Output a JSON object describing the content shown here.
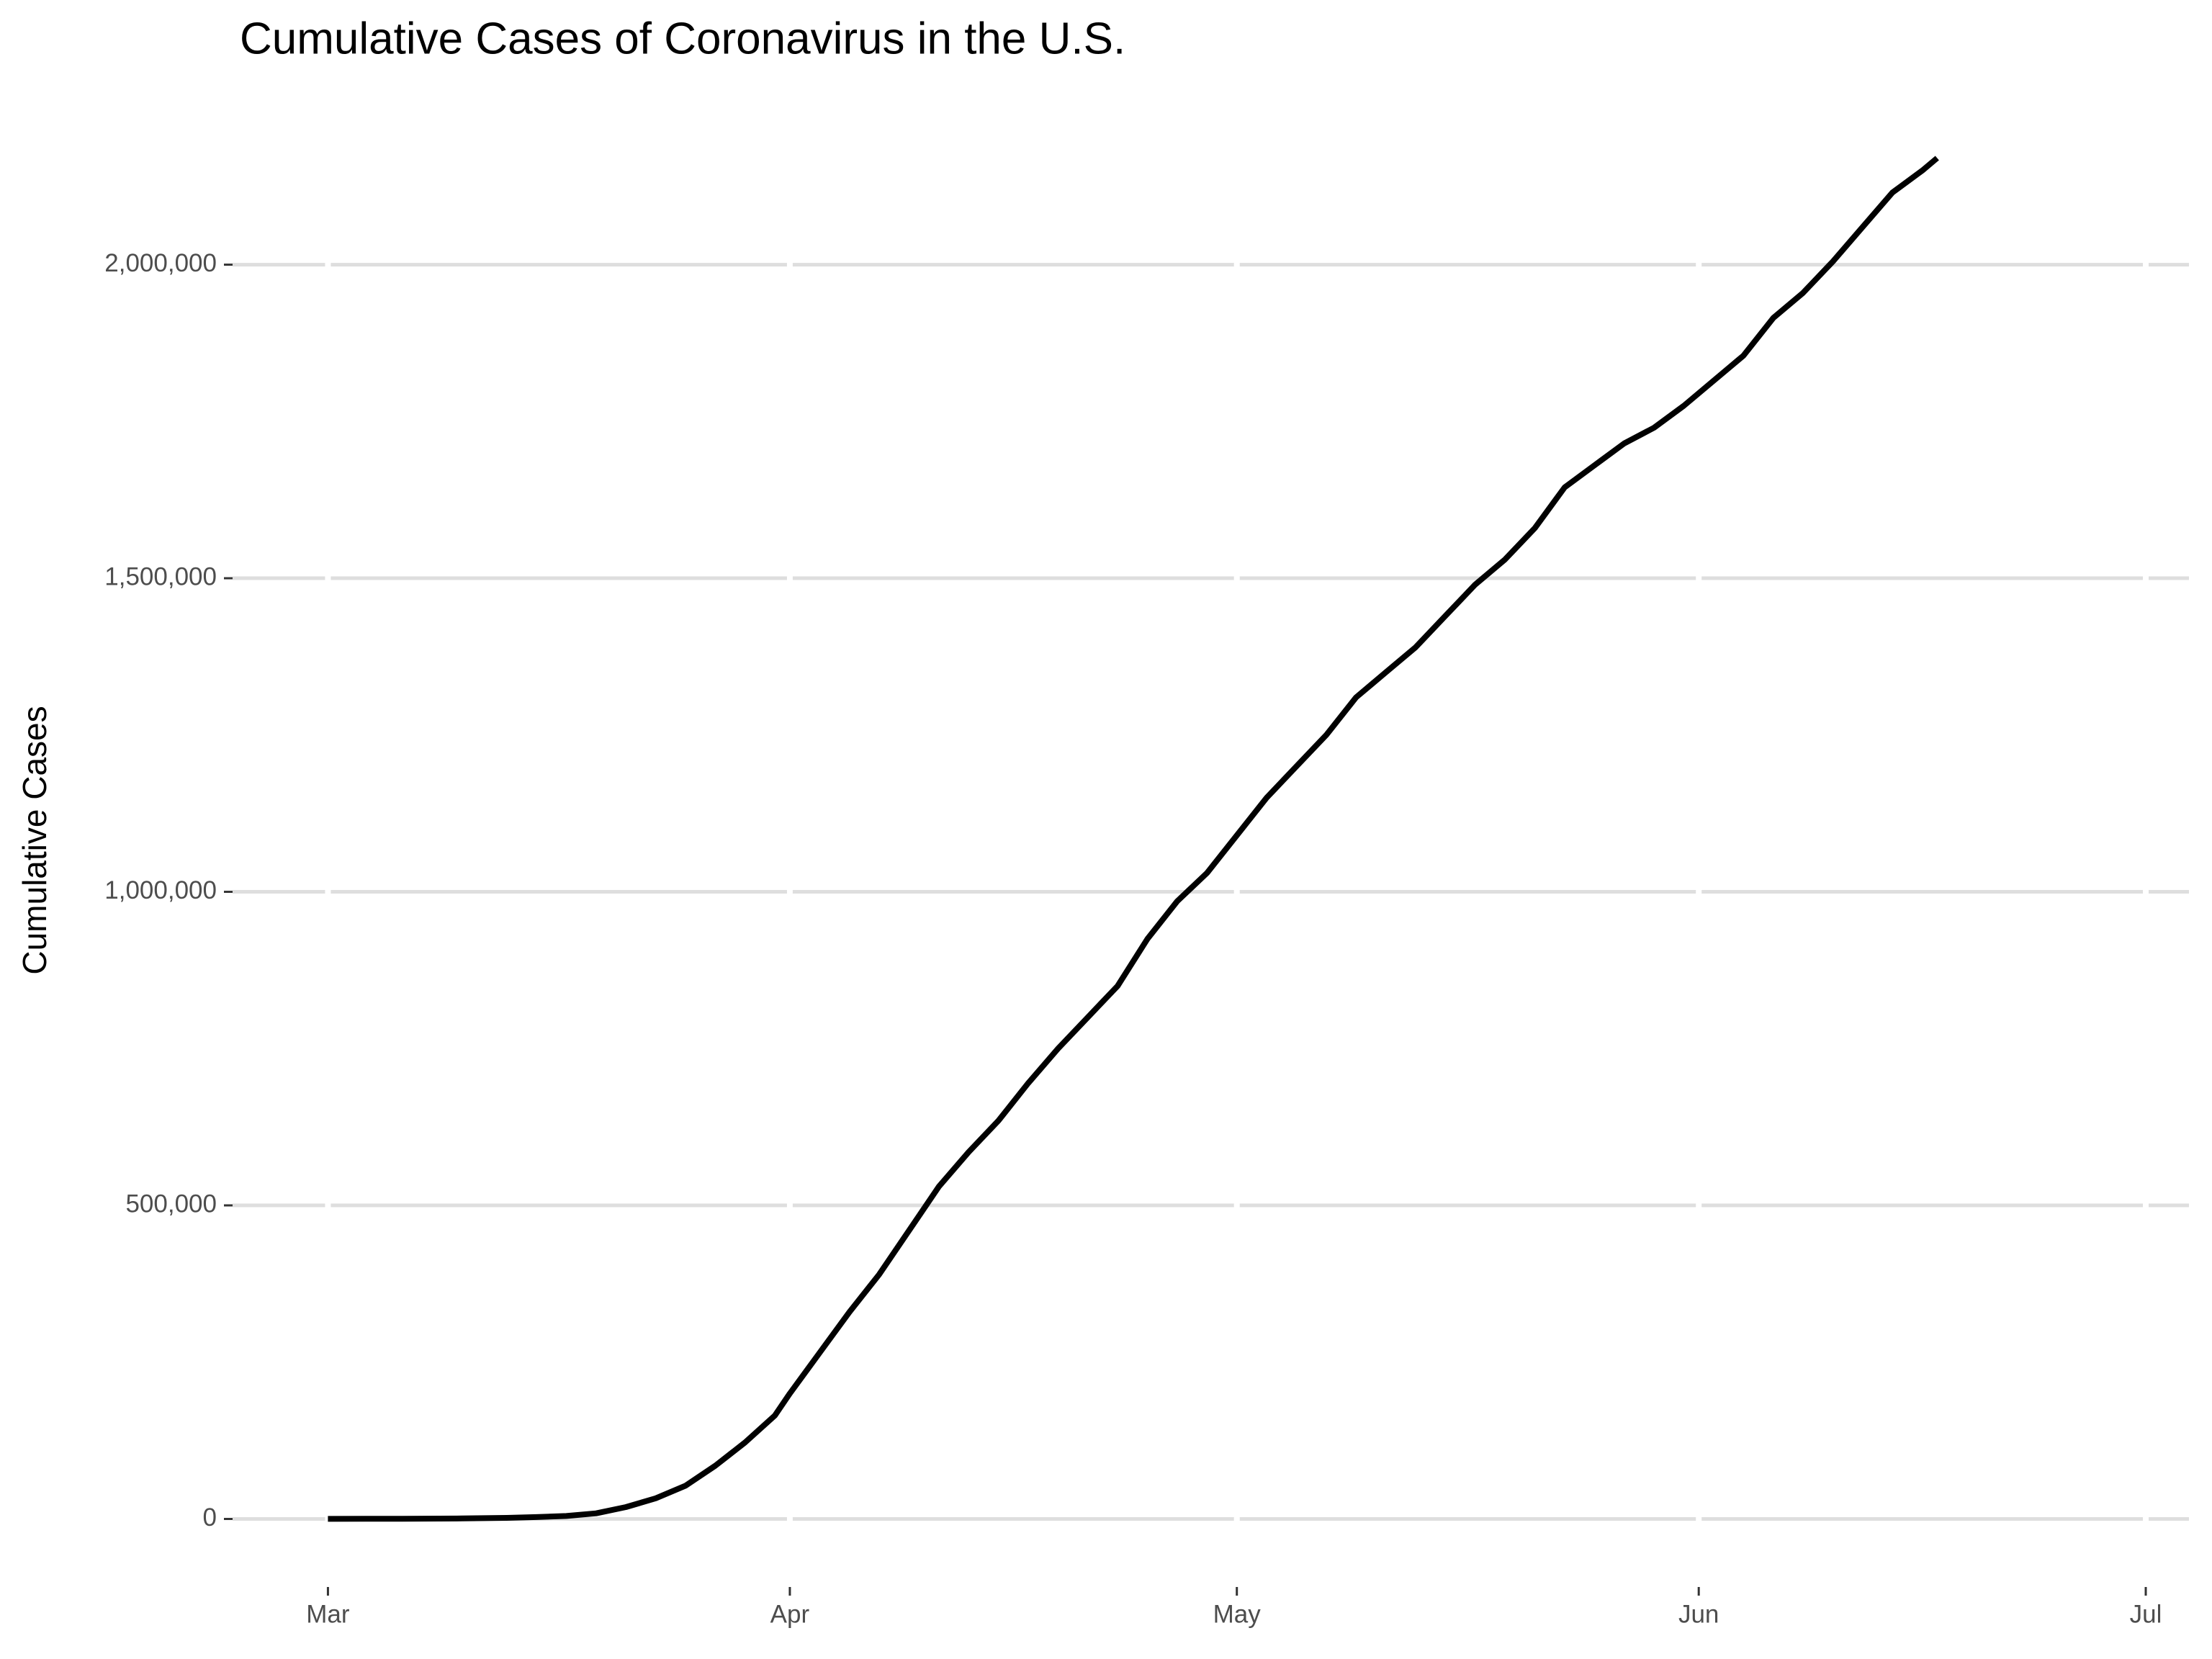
{
  "chart_data": {
    "type": "line",
    "title": "Cumulative Cases of Coronavirus in the U.S.",
    "y_label": "Cumulative Cases",
    "x": [
      0,
      5,
      9,
      12,
      14,
      16,
      18,
      20,
      22,
      24,
      26,
      28,
      30,
      31,
      33,
      35,
      37,
      39,
      41,
      43,
      45,
      47,
      49,
      51,
      53,
      55,
      57,
      59,
      61,
      63,
      65,
      67,
      69,
      71,
      73,
      75,
      77,
      79,
      81,
      83,
      85,
      87,
      89,
      91,
      93,
      95,
      97,
      99,
      101,
      103,
      105,
      107,
      108
    ],
    "series": [
      {
        "color": "#000000",
        "values": [
          75,
          300,
          800,
          1700,
          3000,
          4700,
          9000,
          19000,
          33000,
          53000,
          85000,
          122000,
          165000,
          200000,
          265000,
          330000,
          390000,
          460000,
          530000,
          585000,
          635000,
          695000,
          750000,
          800000,
          850000,
          925000,
          985000,
          1030000,
          1090000,
          1150000,
          1200000,
          1250000,
          1310000,
          1350000,
          1390000,
          1440000,
          1490000,
          1530000,
          1580000,
          1645000,
          1680000,
          1715000,
          1740000,
          1775000,
          1815000,
          1855000,
          1915000,
          1955000,
          2005000,
          2060000,
          2115000,
          2150000,
          2170000
        ]
      }
    ],
    "xlim": [
      -6.4,
      124.9
    ],
    "xticks": [
      {
        "value": 0,
        "label": "Mar"
      },
      {
        "value": 31,
        "label": "Apr"
      },
      {
        "value": 61,
        "label": "May"
      },
      {
        "value": 92,
        "label": "Jun"
      },
      {
        "value": 122,
        "label": "Jul"
      }
    ],
    "ylim": [
      -108500,
      2278500
    ],
    "yticks": [
      0,
      {
        "value": 500000,
        "label": "500,000"
      },
      {
        "value": 1000000,
        "label": "1,000,000"
      },
      {
        "value": 1500000,
        "label": "1,500,000"
      },
      {
        "value": 2000000,
        "label": "2,000,000"
      }
    ],
    "grid": true
  }
}
